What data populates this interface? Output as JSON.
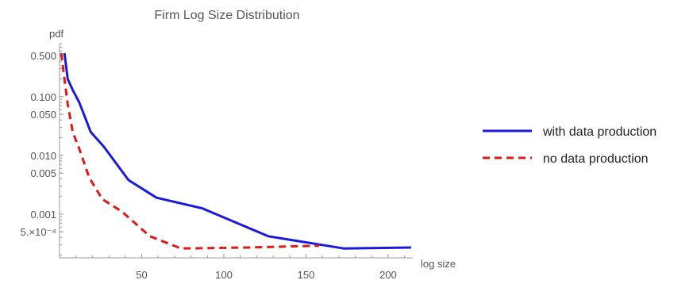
{
  "chart_data": {
    "type": "line",
    "title": "Firm Log Size Distribution",
    "xlabel": "log size",
    "ylabel": "pdf",
    "y_scale": "log",
    "xlim": [
      0,
      215
    ],
    "ylim": [
      0.00018,
      0.8
    ],
    "x_ticks": [
      50,
      100,
      150,
      200
    ],
    "y_ticks": [
      {
        "value": 0.5,
        "label": "0.500"
      },
      {
        "value": 0.1,
        "label": "0.100"
      },
      {
        "value": 0.05,
        "label": "0.050"
      },
      {
        "value": 0.01,
        "label": "0.010"
      },
      {
        "value": 0.005,
        "label": "0.005"
      },
      {
        "value": 0.001,
        "label": "0.001"
      },
      {
        "value": 0.0005,
        "label": "5.×10⁻⁴"
      }
    ],
    "legend_position": "right",
    "series": [
      {
        "name": "with data production",
        "color": "#1a1adb",
        "dash": "solid",
        "points": [
          [
            3,
            0.55
          ],
          [
            5,
            0.2
          ],
          [
            8,
            0.13
          ],
          [
            12,
            0.08
          ],
          [
            19,
            0.025
          ],
          [
            27,
            0.014
          ],
          [
            42,
            0.0038
          ],
          [
            59,
            0.0019
          ],
          [
            87,
            0.00125
          ],
          [
            127,
            0.00042
          ],
          [
            173,
            0.00026
          ],
          [
            214,
            0.00027
          ]
        ]
      },
      {
        "name": "no data production",
        "color": "#e01818",
        "dash": "dashed",
        "points": [
          [
            1,
            0.55
          ],
          [
            3,
            0.2
          ],
          [
            5,
            0.075
          ],
          [
            8,
            0.025
          ],
          [
            12,
            0.013
          ],
          [
            18,
            0.0042
          ],
          [
            26,
            0.0018
          ],
          [
            38,
            0.0011
          ],
          [
            55,
            0.00042
          ],
          [
            74,
            0.00026
          ],
          [
            115,
            0.00027
          ],
          [
            158,
            0.00029
          ]
        ]
      }
    ]
  }
}
